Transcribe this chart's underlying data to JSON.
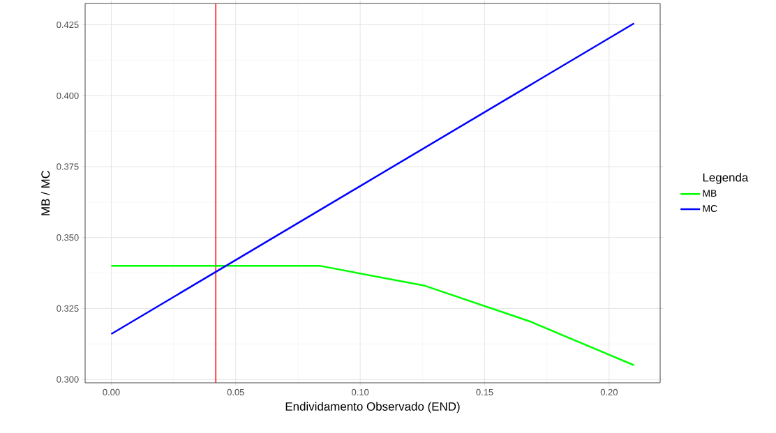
{
  "chart_data": {
    "type": "line",
    "xlabel": "Endividamento Observado (END)",
    "ylabel": "MB / MC",
    "legend_title": "Legenda",
    "legend": "right",
    "grid": true,
    "xlim": [
      -0.0105,
      0.2205
    ],
    "ylim": [
      0.2988,
      0.4325
    ],
    "xticks": [
      {
        "value": 0,
        "label": "0.00"
      },
      {
        "value": 0.05,
        "label": "0.05"
      },
      {
        "value": 0.1,
        "label": "0.10"
      },
      {
        "value": 0.15,
        "label": "0.15"
      },
      {
        "value": 0.2,
        "label": "0.20"
      }
    ],
    "yticks": [
      {
        "value": 0.3,
        "label": "0.300"
      },
      {
        "value": 0.325,
        "label": "0.325"
      },
      {
        "value": 0.35,
        "label": "0.350"
      },
      {
        "value": 0.375,
        "label": "0.375"
      },
      {
        "value": 0.4,
        "label": "0.400"
      },
      {
        "value": 0.425,
        "label": "0.425"
      }
    ],
    "series": [
      {
        "name": "MB",
        "color": "#00ff00",
        "x": [
          0,
          0.042,
          0.084,
          0.126,
          0.168,
          0.21
        ],
        "values": [
          0.34,
          0.34,
          0.34,
          0.333,
          0.3205,
          0.305
        ]
      },
      {
        "name": "MC",
        "color": "#0000ff",
        "x": [
          0,
          0.21
        ],
        "values": [
          0.316,
          0.4255
        ]
      }
    ],
    "ref_lines": [
      {
        "axis": "x",
        "value": 0.042,
        "color": "#ff0000"
      }
    ]
  }
}
